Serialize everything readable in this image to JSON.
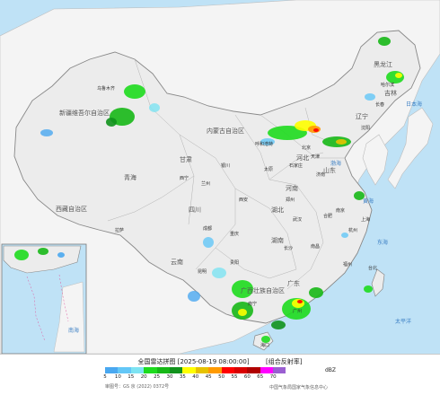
{
  "map": {
    "title": "全国雷达拼图 [2025-08-19 08:00:00]",
    "product": "[组合反射率]",
    "unit": "dBZ",
    "approval_number": "审图号：GS 京 (2022) 0372号",
    "source": "中国气象局国家气象信息中心",
    "legend_values": [
      "5",
      "10",
      "15",
      "20",
      "25",
      "30",
      "35",
      "40",
      "45",
      "50",
      "55",
      "60",
      "65",
      "70"
    ],
    "legend_colors": [
      "#4aa8f0",
      "#63c7f7",
      "#7de3f2",
      "#1edb1e",
      "#17b817",
      "#11921c",
      "#ffff00",
      "#e6c200",
      "#ff9a00",
      "#ff0000",
      "#d90000",
      "#b00000",
      "#ff00ff",
      "#9a5fd1"
    ],
    "regions": [
      "新疆维吾尔自治区",
      "西藏自治区",
      "青海",
      "内蒙古自治区",
      "甘肃",
      "四川",
      "云南",
      "广西壮族自治区",
      "广东",
      "湖南",
      "湖北",
      "河南",
      "山东",
      "河北",
      "黑龙江",
      "吉林",
      "辽宁",
      "陕西",
      "山西",
      "宁夏",
      "贵州",
      "重庆",
      "江西",
      "安徽",
      "浙江",
      "福建",
      "台湾",
      "海南",
      "北京",
      "天津",
      "上海",
      "香港",
      "澳门"
    ],
    "cities": [
      "乌鲁木齐",
      "拉萨",
      "西宁",
      "兰州",
      "银川",
      "呼和浩特",
      "北京",
      "天津",
      "石家庄",
      "太原",
      "济南",
      "郑州",
      "西安",
      "成都",
      "重庆",
      "贵阳",
      "昆明",
      "南宁",
      "广州",
      "长沙",
      "武汉",
      "合肥",
      "南京",
      "上海",
      "杭州",
      "福州",
      "台北",
      "哈尔滨",
      "长春",
      "沈阳",
      "南昌",
      "海口"
    ],
    "seas": [
      "渤海",
      "黄海",
      "东海",
      "南海",
      "日本海",
      "太平洋"
    ]
  }
}
